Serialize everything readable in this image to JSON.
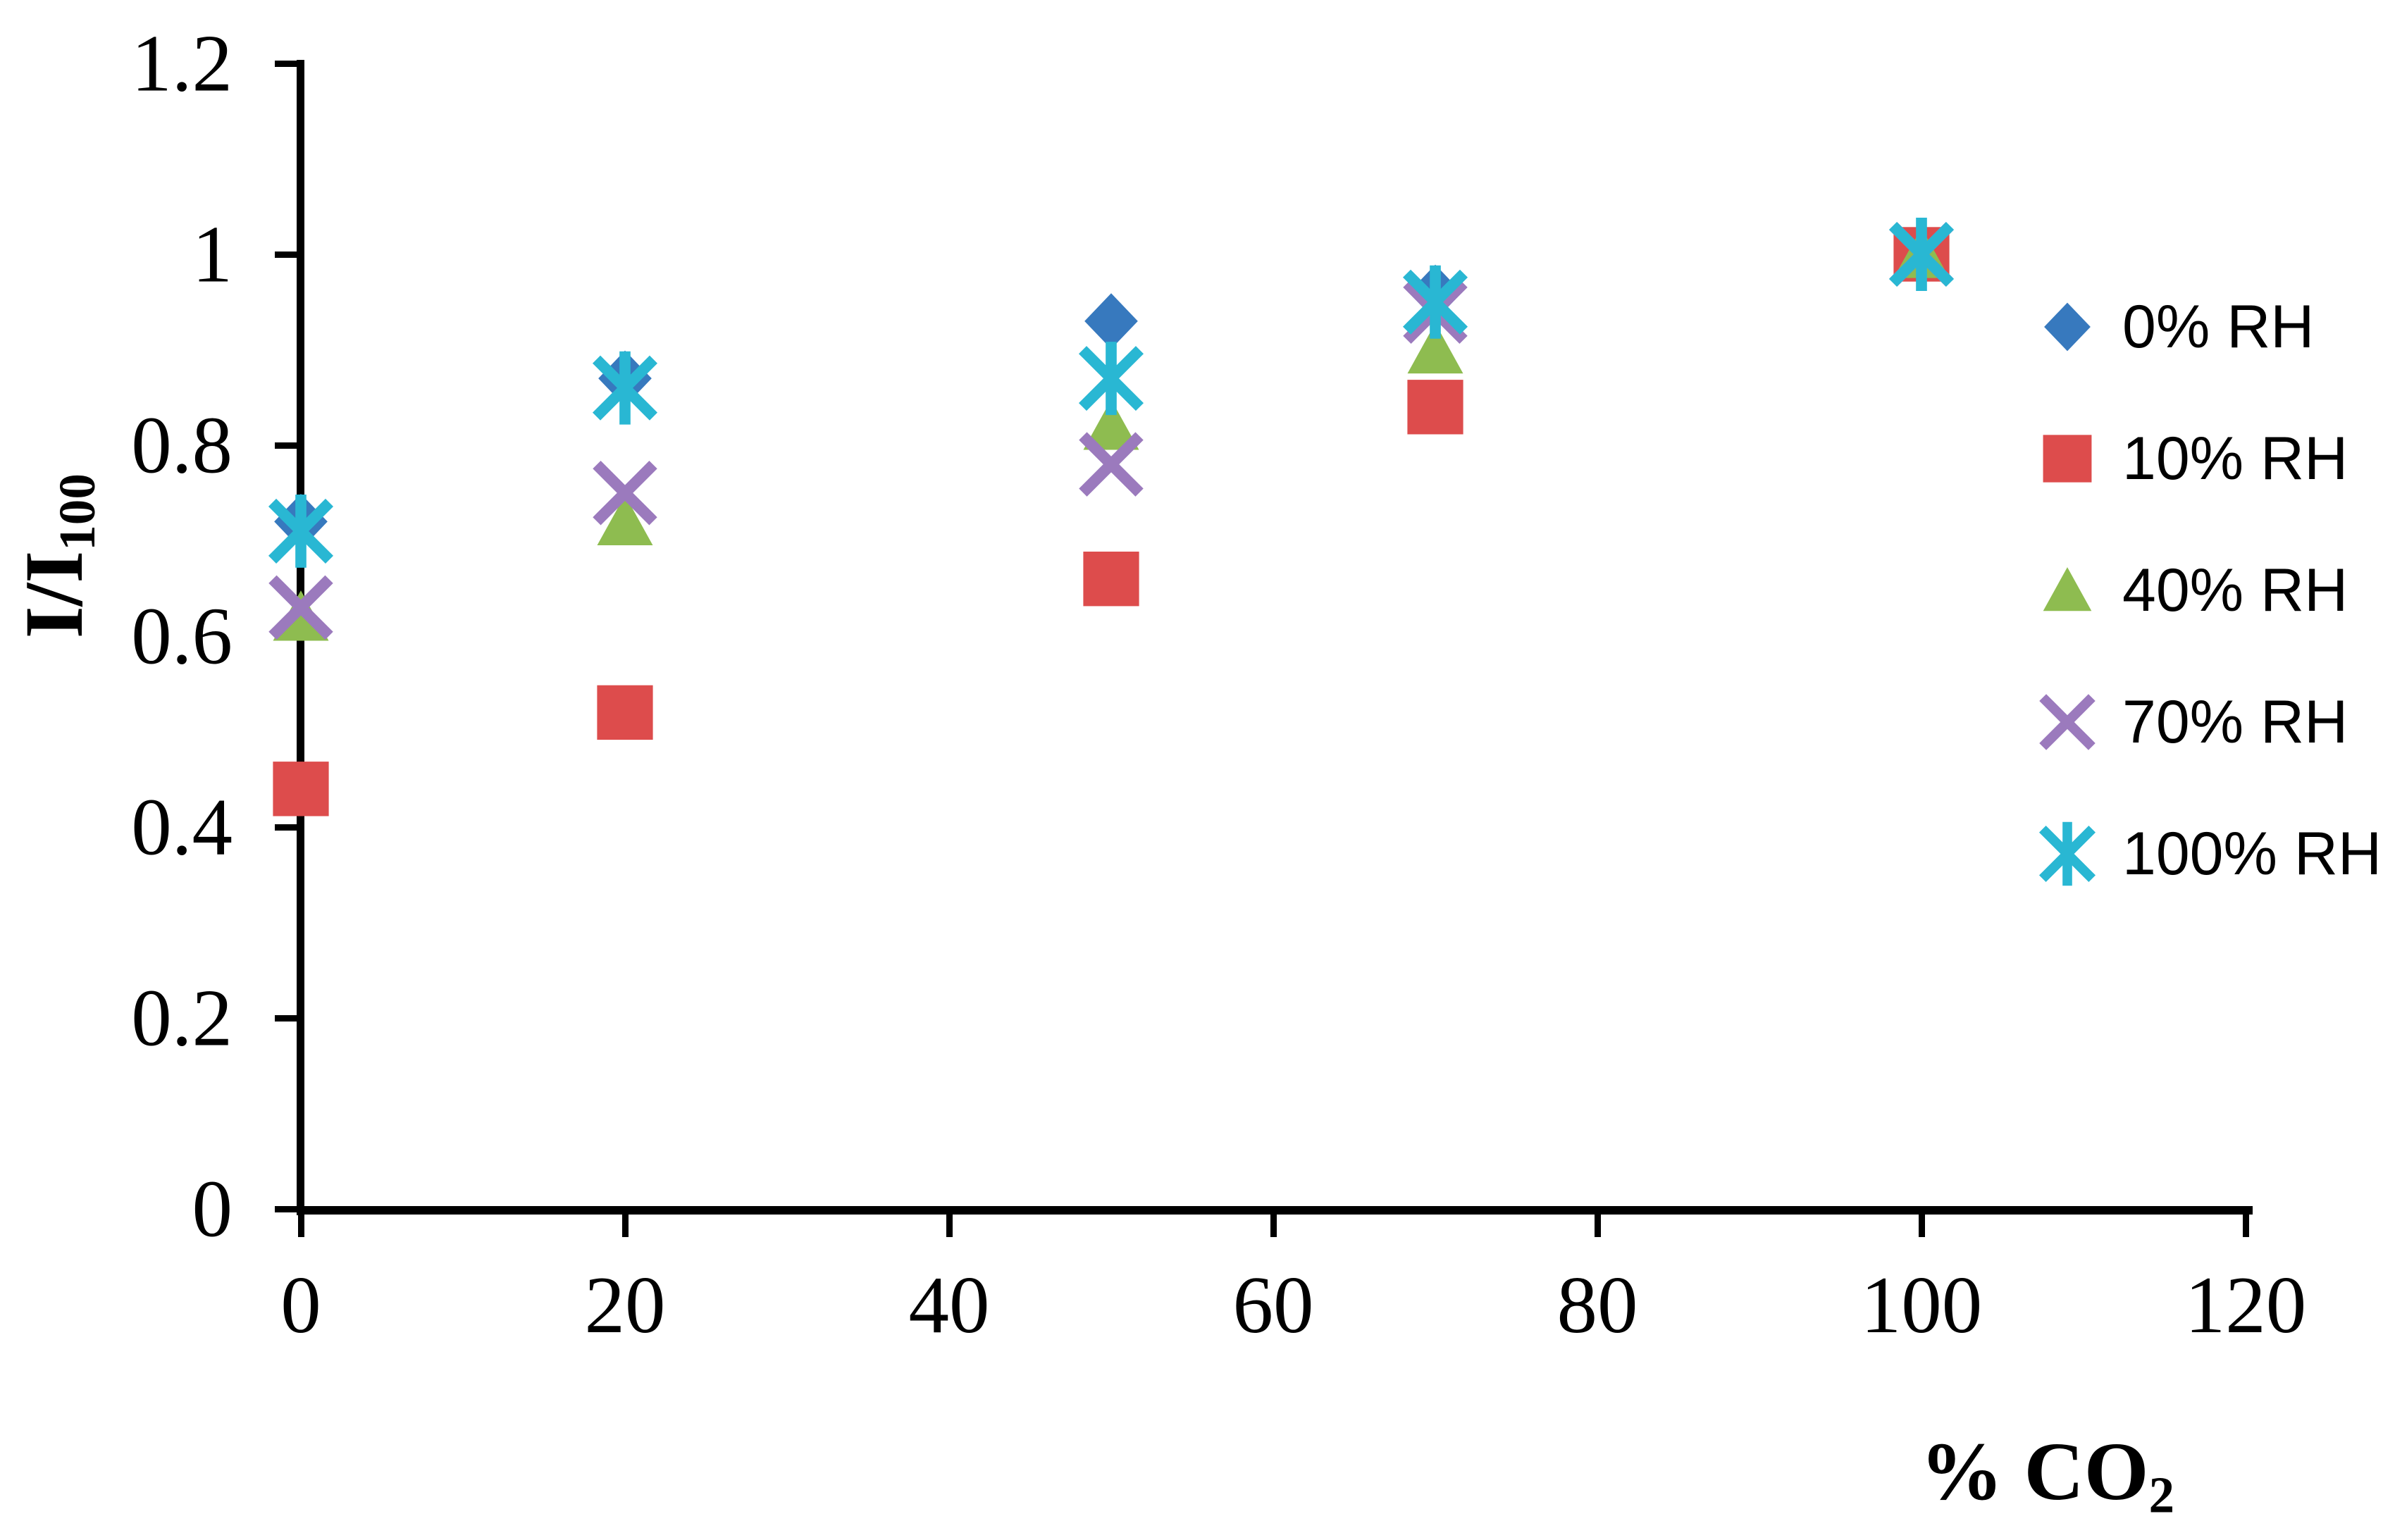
{
  "chart_data": {
    "type": "scatter",
    "title": "",
    "xlabel_main": "% CO",
    "xlabel_sub": "2",
    "ylabel_main": "I/I",
    "ylabel_sub": "100",
    "xlim": [
      0,
      120
    ],
    "ylim": [
      0,
      1.2
    ],
    "x_ticks": [
      0,
      20,
      40,
      60,
      80,
      100,
      120
    ],
    "y_ticks": [
      0,
      0.2,
      0.4,
      0.6,
      0.8,
      1,
      1.2
    ],
    "y_tick_labels": [
      "0",
      "0.2",
      "0.4",
      "0.6",
      "0.8",
      "1",
      "1.2"
    ],
    "grid": false,
    "legend_position": "right",
    "x": [
      0,
      20,
      50,
      70,
      100
    ],
    "series": [
      {
        "name": "0% RH",
        "marker": "diamond",
        "color": "#3779BE",
        "values": [
          0.72,
          0.87,
          0.93,
          0.96,
          1.0
        ]
      },
      {
        "name": "10% RH",
        "marker": "square",
        "color": "#DD4C4C",
        "values": [
          0.44,
          0.52,
          0.66,
          0.84,
          1.0
        ]
      },
      {
        "name": "40% RH",
        "marker": "triangle",
        "color": "#8EBC50",
        "values": [
          0.62,
          0.72,
          0.82,
          0.9,
          1.0
        ]
      },
      {
        "name": "70% RH",
        "marker": "x",
        "color": "#9B7ABD",
        "values": [
          0.63,
          0.75,
          0.78,
          0.94,
          1.0
        ]
      },
      {
        "name": "100% RH",
        "marker": "asterisk",
        "color": "#29B7D3",
        "values": [
          0.71,
          0.86,
          0.87,
          0.95,
          1.0
        ]
      }
    ]
  }
}
